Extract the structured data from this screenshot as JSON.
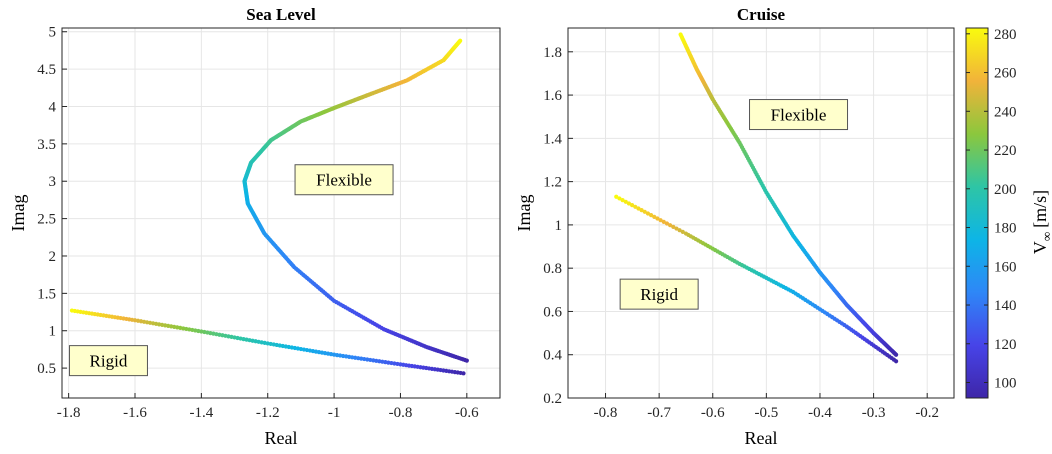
{
  "colormap": [
    "#3e26a8",
    "#4744e8",
    "#2e87f7",
    "#0db5e6",
    "#2ec5a5",
    "#8cc73d",
    "#f1b33a",
    "#f9fb0e"
  ],
  "chart_data": [
    {
      "type": "scatter",
      "title": "Sea Level",
      "xlabel": "Real",
      "ylabel": "Imag",
      "xlim": [
        -1.82,
        -0.5
      ],
      "ylim": [
        0.1,
        5.05
      ],
      "xticks": [
        -1.8,
        -1.6,
        -1.4,
        -1.2,
        -1,
        -0.8,
        -0.6
      ],
      "xtick_labels": [
        "-1.8",
        "-1.6",
        "-1.4",
        "-1.2",
        "-1",
        "-0.8",
        "-0.6"
      ],
      "yticks": [
        0.5,
        1,
        1.5,
        2,
        2.5,
        3,
        3.5,
        4,
        4.5,
        5
      ],
      "ytick_labels": [
        "0.5",
        "1",
        "1.5",
        "2",
        "2.5",
        "3",
        "3.5",
        "4",
        "4.5",
        "5"
      ],
      "grid": true,
      "annotations": [
        {
          "text": "Flexible",
          "x": -0.97,
          "y": 3.02
        },
        {
          "text": "Rigid",
          "x": -1.68,
          "y": 0.6
        }
      ],
      "series": [
        {
          "name": "Flexible",
          "v_range": [
            92,
            283
          ],
          "points": [
            [
              -0.6,
              0.6
            ],
            [
              -0.72,
              0.78
            ],
            [
              -0.85,
              1.02
            ],
            [
              -1.0,
              1.4
            ],
            [
              -1.12,
              1.85
            ],
            [
              -1.21,
              2.3
            ],
            [
              -1.26,
              2.7
            ],
            [
              -1.27,
              3.0
            ],
            [
              -1.25,
              3.25
            ],
            [
              -1.19,
              3.55
            ],
            [
              -1.1,
              3.8
            ],
            [
              -1.0,
              3.98
            ],
            [
              -0.9,
              4.15
            ],
            [
              -0.78,
              4.35
            ],
            [
              -0.67,
              4.62
            ],
            [
              -0.62,
              4.88
            ]
          ]
        },
        {
          "name": "Rigid",
          "v_range": [
            92,
            283
          ],
          "points": [
            [
              -0.61,
              0.43
            ],
            [
              -0.8,
              0.55
            ],
            [
              -1.0,
              0.68
            ],
            [
              -1.2,
              0.83
            ],
            [
              -1.4,
              0.99
            ],
            [
              -1.6,
              1.14
            ],
            [
              -1.79,
              1.27
            ]
          ]
        }
      ]
    },
    {
      "type": "scatter",
      "title": "Cruise",
      "xlabel": "Real",
      "ylabel": "Imag",
      "xlim": [
        -0.87,
        -0.15
      ],
      "ylim": [
        0.2,
        1.91
      ],
      "xticks": [
        -0.8,
        -0.7,
        -0.6,
        -0.5,
        -0.4,
        -0.3,
        -0.2
      ],
      "xtick_labels": [
        "-0.8",
        "-0.7",
        "-0.6",
        "-0.5",
        "-0.4",
        "-0.3",
        "-0.2"
      ],
      "yticks": [
        0.2,
        0.4,
        0.6,
        0.8,
        1,
        1.2,
        1.4,
        1.6,
        1.8
      ],
      "ytick_labels": [
        "0.2",
        "0.4",
        "0.6",
        "0.8",
        "1",
        "1.2",
        "1.4",
        "1.6",
        "1.8"
      ],
      "grid": true,
      "annotations": [
        {
          "text": "Flexible",
          "x": -0.44,
          "y": 1.51
        },
        {
          "text": "Rigid",
          "x": -0.7,
          "y": 0.68
        }
      ],
      "series": [
        {
          "name": "Flexible",
          "v_range": [
            92,
            283
          ],
          "points": [
            [
              -0.258,
              0.4
            ],
            [
              -0.3,
              0.5
            ],
            [
              -0.35,
              0.63
            ],
            [
              -0.4,
              0.78
            ],
            [
              -0.45,
              0.95
            ],
            [
              -0.5,
              1.15
            ],
            [
              -0.55,
              1.38
            ],
            [
              -0.6,
              1.58
            ],
            [
              -0.63,
              1.72
            ],
            [
              -0.66,
              1.88
            ]
          ]
        },
        {
          "name": "Rigid",
          "v_range": [
            92,
            283
          ],
          "points": [
            [
              -0.258,
              0.37
            ],
            [
              -0.35,
              0.53
            ],
            [
              -0.45,
              0.69
            ],
            [
              -0.55,
              0.82
            ],
            [
              -0.65,
              0.96
            ],
            [
              -0.78,
              1.13
            ]
          ]
        }
      ]
    }
  ],
  "colorbar": {
    "min": 92,
    "max": 283,
    "ticks": [
      100,
      120,
      140,
      160,
      180,
      200,
      220,
      240,
      260,
      280
    ],
    "tick_labels": [
      "100",
      "120",
      "140",
      "160",
      "180",
      "200",
      "220",
      "240",
      "260",
      "280"
    ],
    "label": "V",
    "label_subscript": "∞",
    "label_unit": "[m/s]"
  }
}
